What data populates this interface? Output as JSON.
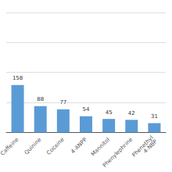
{
  "chart_data": {
    "type": "bar",
    "categories": [
      "Caffeine",
      "Quinine",
      "Cocaine",
      "4-ANPP",
      "Mannitol",
      "Phenylephrine",
      "Phenethyl\n4-NBP"
    ],
    "values": [
      158,
      88,
      77,
      54,
      45,
      42,
      31
    ],
    "color": "#5B9BD5",
    "ylim": [
      0,
      400
    ],
    "yticks": [
      0,
      100,
      200,
      300,
      400
    ],
    "grid": true,
    "data_labels": true,
    "tick_labels": "x"
  }
}
